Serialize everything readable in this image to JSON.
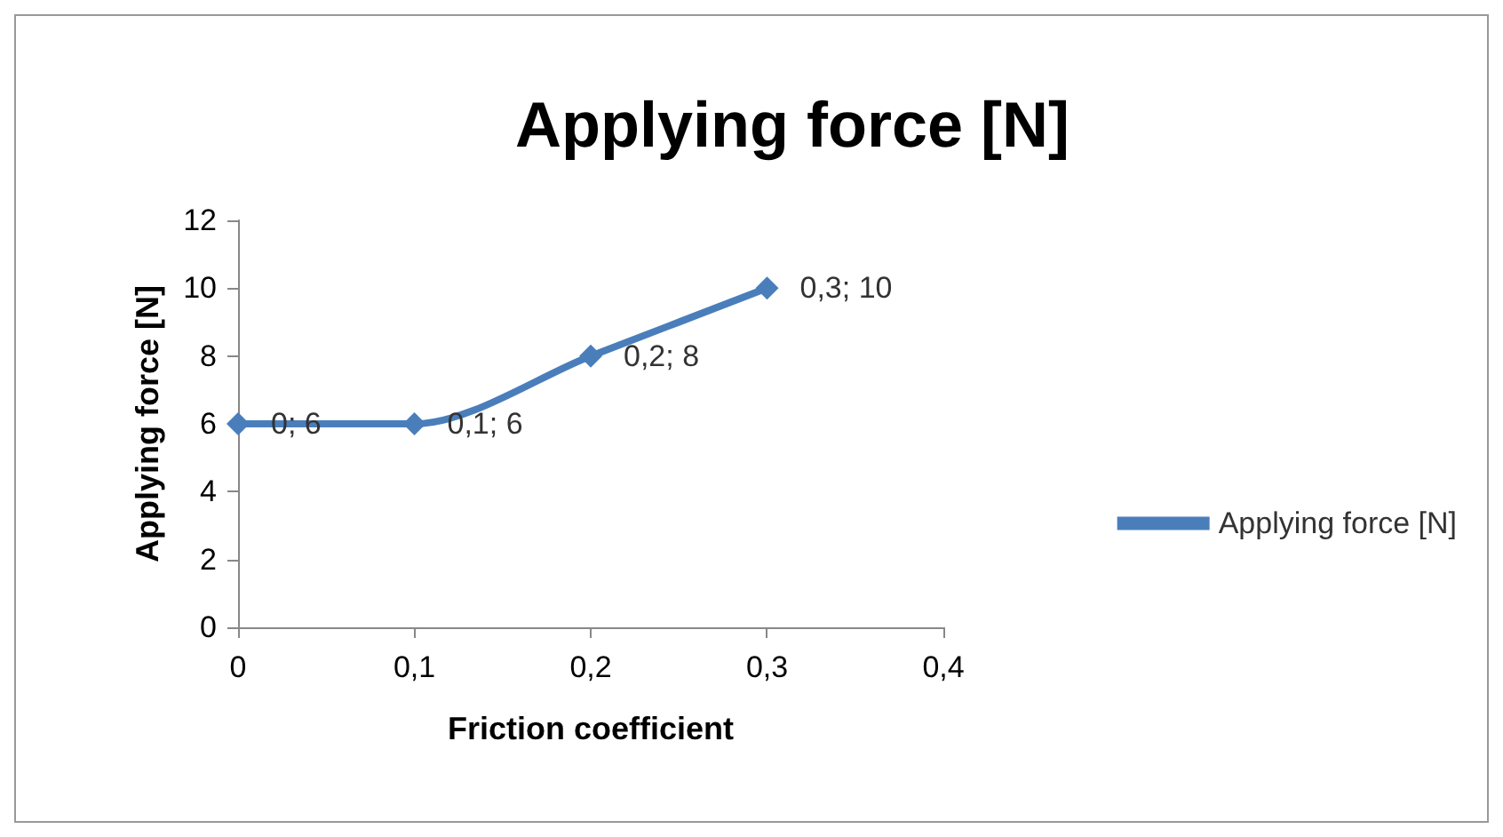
{
  "chart_data": {
    "type": "line",
    "title": "Applying force [N]",
    "xlabel": "Friction coefficient",
    "ylabel": "Applying force [N]",
    "x": [
      0,
      0.1,
      0.2,
      0.3
    ],
    "series": [
      {
        "name": "Applying force [N]",
        "color": "#4a7ebb",
        "values": [
          6,
          6,
          8,
          10
        ],
        "value_labels": [
          "0; 6",
          "0,1; 6",
          "0,2; 8",
          "0,3; 10"
        ]
      }
    ],
    "xlim": [
      0,
      0.4
    ],
    "xticks": [
      0,
      {
        "value": 0.1,
        "label": "0,1"
      },
      {
        "value": 0.2,
        "label": "0,2"
      },
      {
        "value": 0.3,
        "label": "0,3"
      },
      {
        "value": 0.4,
        "label": "0,4"
      }
    ],
    "ylim": [
      0,
      12
    ],
    "yticks": [
      0,
      2,
      4,
      6,
      8,
      10,
      12
    ],
    "grid": false,
    "legend": "right",
    "marker": "diamond",
    "line_style": "solid"
  }
}
